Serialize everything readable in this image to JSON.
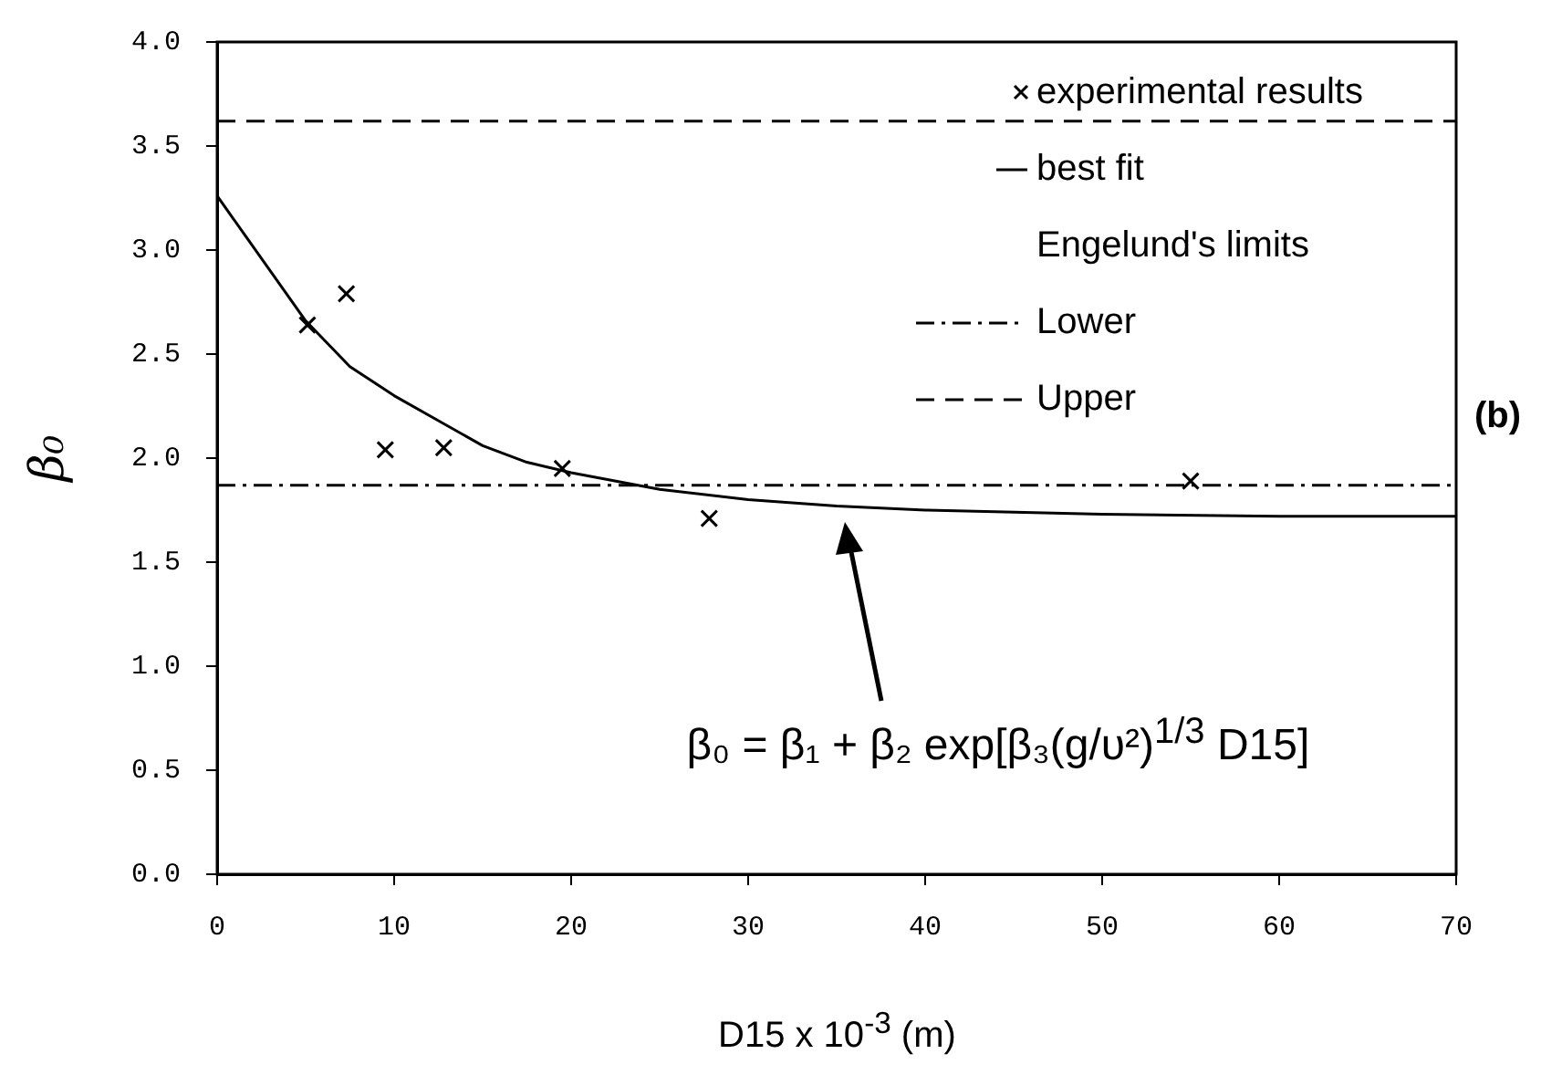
{
  "chart_data": {
    "type": "scatter",
    "xlabel": "D15 x 10$^{-3}$ (m)",
    "ylabel": "β₀",
    "xlim": [
      0,
      70
    ],
    "xticks": [
      0,
      10,
      20,
      30,
      40,
      50,
      60,
      70
    ],
    "ylim": [
      0,
      4
    ],
    "yticks": [
      {
        "value": 0,
        "label": "0.0"
      },
      {
        "value": 0.5,
        "label": "0.5"
      },
      {
        "value": 1,
        "label": "1.0"
      },
      {
        "value": 1.5,
        "label": "1.5"
      },
      {
        "value": 2,
        "label": "2.0"
      },
      {
        "value": 2.5,
        "label": "2.5"
      },
      {
        "value": 3,
        "label": "3.0"
      },
      {
        "value": 3.5,
        "label": "3.5"
      },
      {
        "value": 4,
        "label": "4.0"
      }
    ],
    "grid": false,
    "legend": "top right",
    "legend_title": "Engelund's limits",
    "series": [
      {
        "name": "experimental results",
        "type": "scatter",
        "marker": "cross",
        "color": "#000000",
        "x": [
          5.1,
          7.3,
          9.5,
          12.8,
          19.5,
          27.8,
          55.0
        ],
        "values": [
          2.64,
          2.79,
          2.04,
          2.05,
          1.95,
          1.71,
          1.89
        ]
      },
      {
        "name": "best fit",
        "type": "line",
        "marker": "none",
        "line_style": "solid",
        "color": "#000000",
        "x": [
          0,
          2.5,
          5,
          7.5,
          10,
          12.5,
          15,
          17.5,
          20,
          25,
          30,
          35,
          40,
          50,
          60,
          70
        ],
        "values": [
          3.26,
          2.96,
          2.66,
          2.44,
          2.3,
          2.18,
          2.06,
          1.98,
          1.93,
          1.85,
          1.8,
          1.77,
          1.75,
          1.73,
          1.72,
          1.72
        ]
      }
    ],
    "ref_lines": [
      {
        "axis": "y",
        "value": 1.87,
        "label": "Lower",
        "line_style": "dashdot",
        "color": "#000000"
      },
      {
        "axis": "y",
        "value": 3.62,
        "label": "Upper",
        "line_style": "dashed",
        "color": "#000000"
      }
    ],
    "annotations": [
      "β₀ = β₁ + β₂ exp[β₃(g/υ²)$^{1/3}$ D15]",
      "(b)"
    ]
  }
}
